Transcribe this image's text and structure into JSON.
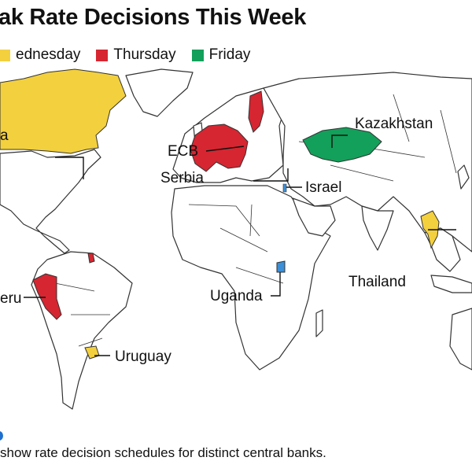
{
  "title": "ak Rate Decisions This Week",
  "legend": [
    {
      "label": "ednesday",
      "color": "#f3d03e"
    },
    {
      "label": "Thursday",
      "color": "#d62631"
    },
    {
      "label": "Friday",
      "color": "#12a05a"
    }
  ],
  "map_labels": {
    "canada": "a",
    "ecb": "ECB",
    "serbia": "Serbia",
    "kazakhstan": "Kazakhstan",
    "israel": "Israel",
    "thailand": "Thailand",
    "uganda": "Uganda",
    "peru": "eru",
    "uruguay": "Uruguay"
  },
  "footnote": "show rate decision schedules for distinct central banks.",
  "colors": {
    "wednesday": "#f3d03e",
    "thursday": "#d62631",
    "friday": "#12a05a",
    "other": "#3b8fd8",
    "land": "#ffffff",
    "border": "#333333"
  }
}
